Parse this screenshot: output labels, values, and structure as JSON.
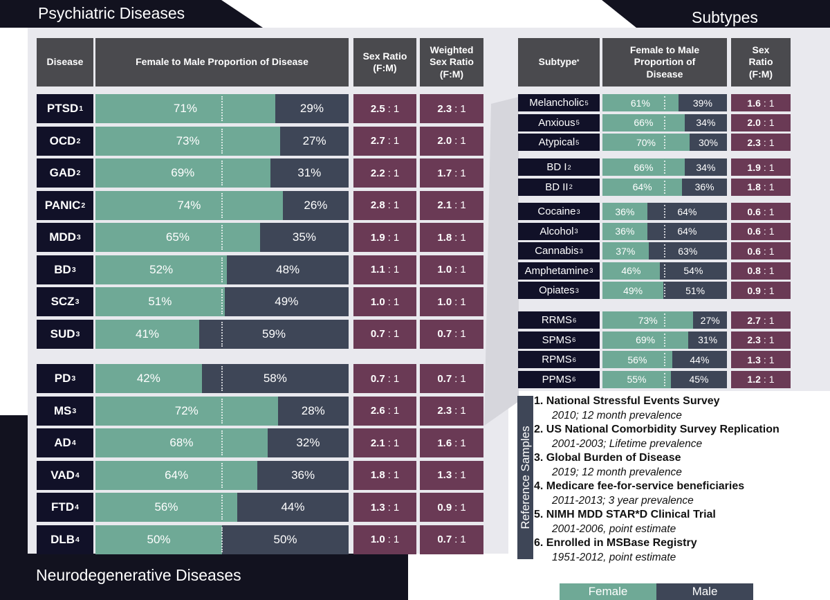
{
  "titles": {
    "psychiatric": "Psychiatric Diseases",
    "neurodegenerative": "Neurodegenerative Diseases",
    "subtypes": "Subtypes"
  },
  "headers": {
    "disease": "Disease",
    "proportion": "Female to Male Proportion of Disease",
    "sex_ratio": "Sex Ratio (F:M)",
    "weighted": "Weighted Sex Ratio (F:M)",
    "subtype": "Subtype",
    "subtype_mark": "*",
    "sub_proportion": "Female to Male Proportion of Disease",
    "sub_ratio": "Sex Ratio (F:M)"
  },
  "legend": {
    "female": "Female",
    "male": "Male"
  },
  "colors": {
    "female": "#6fa996",
    "male": "#3e4657",
    "ratio": "#6a3a55",
    "name": "#111128",
    "header": "#4a4a4e"
  },
  "chart_data": [
    {
      "type": "bar",
      "title": "Psychiatric Diseases",
      "categories": [
        "PTSD",
        "OCD",
        "GAD",
        "PANIC",
        "MDD",
        "BD",
        "SCZ",
        "SUD"
      ],
      "refs": [
        "1",
        "2",
        "2",
        "2",
        "3",
        "3",
        "3",
        "3"
      ],
      "series": [
        {
          "name": "Female",
          "values": [
            71,
            73,
            69,
            74,
            65,
            52,
            51,
            41
          ]
        },
        {
          "name": "Male",
          "values": [
            29,
            27,
            31,
            26,
            35,
            48,
            49,
            59
          ]
        }
      ],
      "sex_ratio": [
        "2.5",
        "2.7",
        "2.2",
        "2.8",
        "1.9",
        "1.1",
        "1.0",
        "0.7"
      ],
      "weighted_sex_ratio": [
        "2.3",
        "2.0",
        "1.7",
        "2.1",
        "1.8",
        "1.0",
        "1.0",
        "0.7"
      ],
      "ylim": [
        0,
        100
      ]
    },
    {
      "type": "bar",
      "title": "Neurodegenerative Diseases",
      "categories": [
        "PD",
        "MS",
        "AD",
        "VAD",
        "FTD",
        "DLB"
      ],
      "refs": [
        "3",
        "3",
        "4",
        "4",
        "4",
        "4"
      ],
      "series": [
        {
          "name": "Female",
          "values": [
            42,
            72,
            68,
            64,
            56,
            50
          ]
        },
        {
          "name": "Male",
          "values": [
            58,
            28,
            32,
            36,
            44,
            50
          ]
        }
      ],
      "sex_ratio": [
        "0.7",
        "2.6",
        "2.1",
        "1.8",
        "1.3",
        "1.0"
      ],
      "weighted_sex_ratio": [
        "0.7",
        "2.3",
        "1.6",
        "1.3",
        "0.9",
        "0.7"
      ],
      "ylim": [
        0,
        100
      ]
    },
    {
      "type": "bar",
      "title": "Subtypes",
      "groups": [
        {
          "categories": [
            "Melancholic",
            "Anxious",
            "Atypical"
          ],
          "refs": [
            "5",
            "5",
            "5"
          ],
          "female": [
            61,
            66,
            70
          ],
          "male": [
            39,
            34,
            30
          ],
          "sex_ratio": [
            "1.6",
            "2.0",
            "2.3"
          ]
        },
        {
          "categories": [
            "BD I",
            "BD II"
          ],
          "refs": [
            "2",
            "2"
          ],
          "female": [
            66,
            64
          ],
          "male": [
            34,
            36
          ],
          "sex_ratio": [
            "1.9",
            "1.8"
          ]
        },
        {
          "categories": [
            "Cocaine",
            "Alcohol",
            "Cannabis",
            "Amphetamine",
            "Opiates"
          ],
          "refs": [
            "3",
            "3",
            "3",
            "3",
            "3"
          ],
          "female": [
            36,
            36,
            37,
            46,
            49
          ],
          "male": [
            64,
            64,
            63,
            54,
            51
          ],
          "sex_ratio": [
            "0.6",
            "0.6",
            "0.6",
            "0.8",
            "0.9"
          ]
        },
        {
          "categories": [
            "RRMS",
            "SPMS",
            "RPMS",
            "PPMS"
          ],
          "refs": [
            "6",
            "6",
            "6",
            "6"
          ],
          "female": [
            73,
            69,
            56,
            55
          ],
          "male": [
            27,
            31,
            44,
            45
          ],
          "sex_ratio": [
            "2.7",
            "2.3",
            "1.3",
            "1.2"
          ]
        }
      ],
      "ylim": [
        0,
        100
      ]
    }
  ],
  "references": {
    "label": "Reference Samples",
    "items": [
      {
        "title": "1. National Stressful Events Survey",
        "detail": "2010; 12 month prevalence"
      },
      {
        "title": "2. US National Comorbidity Survey Replication",
        "detail": "2001-2003; Lifetime prevalence"
      },
      {
        "title": "3. Global Burden of Disease",
        "detail": "2019; 12 month prevalence"
      },
      {
        "title": "4. Medicare fee-for-service beneficiaries",
        "detail": "2011-2013; 3 year prevalence"
      },
      {
        "title": "5. NIMH MDD STAR*D Clinical Trial",
        "detail": "2001-2006, point estimate"
      },
      {
        "title": "6. Enrolled in MSBase Registry",
        "detail": "1951-2012, point estimate"
      }
    ]
  }
}
